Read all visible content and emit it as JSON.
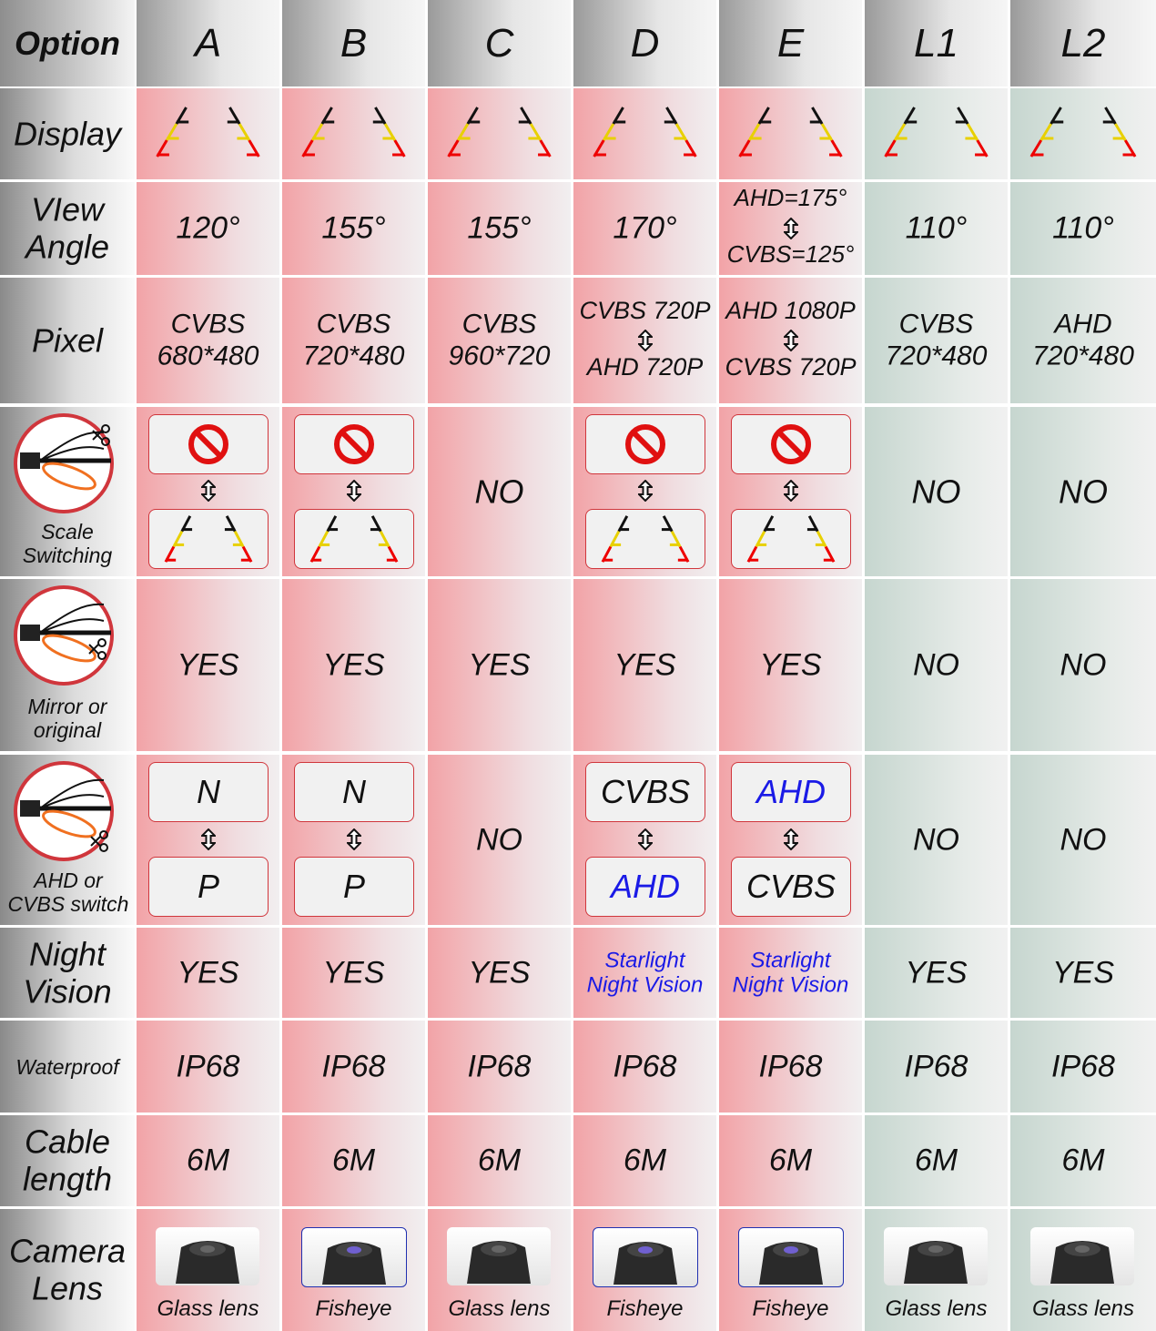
{
  "header": {
    "label": "Option",
    "columns": [
      "A",
      "B",
      "C",
      "D",
      "E",
      "L1",
      "L2"
    ]
  },
  "rows": [
    {
      "label": "Display"
    },
    {
      "label": "VIew\nAngle",
      "cells": [
        "120°",
        "155°",
        "155°",
        "170°",
        {
          "top": "AHD=175°",
          "bottom": "CVBS=125°"
        },
        "110°",
        "110°"
      ]
    },
    {
      "label": "Pixel",
      "cells": [
        "CVBS\n680*480",
        "CVBS\n720*480",
        "CVBS\n960*720",
        {
          "top": "CVBS 720P",
          "bottom": "AHD 720P"
        },
        {
          "top": "AHD 1080P",
          "bottom": "CVBS 720P"
        },
        "CVBS\n720*480",
        "AHD\n720*480"
      ]
    },
    {
      "label": "Scale\nSwitching",
      "cells": [
        null,
        null,
        "NO",
        null,
        null,
        "NO",
        "NO"
      ]
    },
    {
      "label": "Mirror or\noriginal",
      "cells": [
        "YES",
        "YES",
        "YES",
        "YES",
        "YES",
        "NO",
        "NO"
      ]
    },
    {
      "label": "AHD or\nCVBS switch",
      "cells": [
        {
          "top": "N",
          "bottom": "P",
          "boxed": true
        },
        {
          "top": "N",
          "bottom": "P",
          "boxed": true
        },
        "NO",
        {
          "top": "CVBS",
          "bottom": {
            "text": "AHD",
            "color": "#1a1ae6"
          },
          "boxed": true
        },
        {
          "top": {
            "text": "AHD",
            "color": "#1a1ae6"
          },
          "bottom": "CVBS",
          "boxed": true
        },
        "NO",
        "NO"
      ]
    },
    {
      "label": "Night\nVision",
      "cells": [
        "YES",
        "YES",
        "YES",
        {
          "text": "Starlight\nNight Vision",
          "color": "#1a1ae6"
        },
        {
          "text": "Starlight\nNight Vision",
          "color": "#1a1ae6"
        },
        "YES",
        "YES"
      ]
    },
    {
      "label": "Waterproof",
      "cells": [
        "IP68",
        "IP68",
        "IP68",
        "IP68",
        "IP68",
        "IP68",
        "IP68"
      ]
    },
    {
      "label": "Cable\nlength",
      "cells": [
        "6M",
        "6M",
        "6M",
        "6M",
        "6M",
        "6M",
        "6M"
      ]
    },
    {
      "label": "Camera\nLens",
      "cells": [
        {
          "text": "Glass lens"
        },
        {
          "text": "Fisheye",
          "framed": true
        },
        {
          "text": "Glass lens"
        },
        {
          "text": "Fisheye",
          "framed": true
        },
        {
          "text": "Fisheye",
          "framed": true
        },
        {
          "text": "Glass lens"
        },
        {
          "text": "Glass lens"
        }
      ]
    }
  ]
}
